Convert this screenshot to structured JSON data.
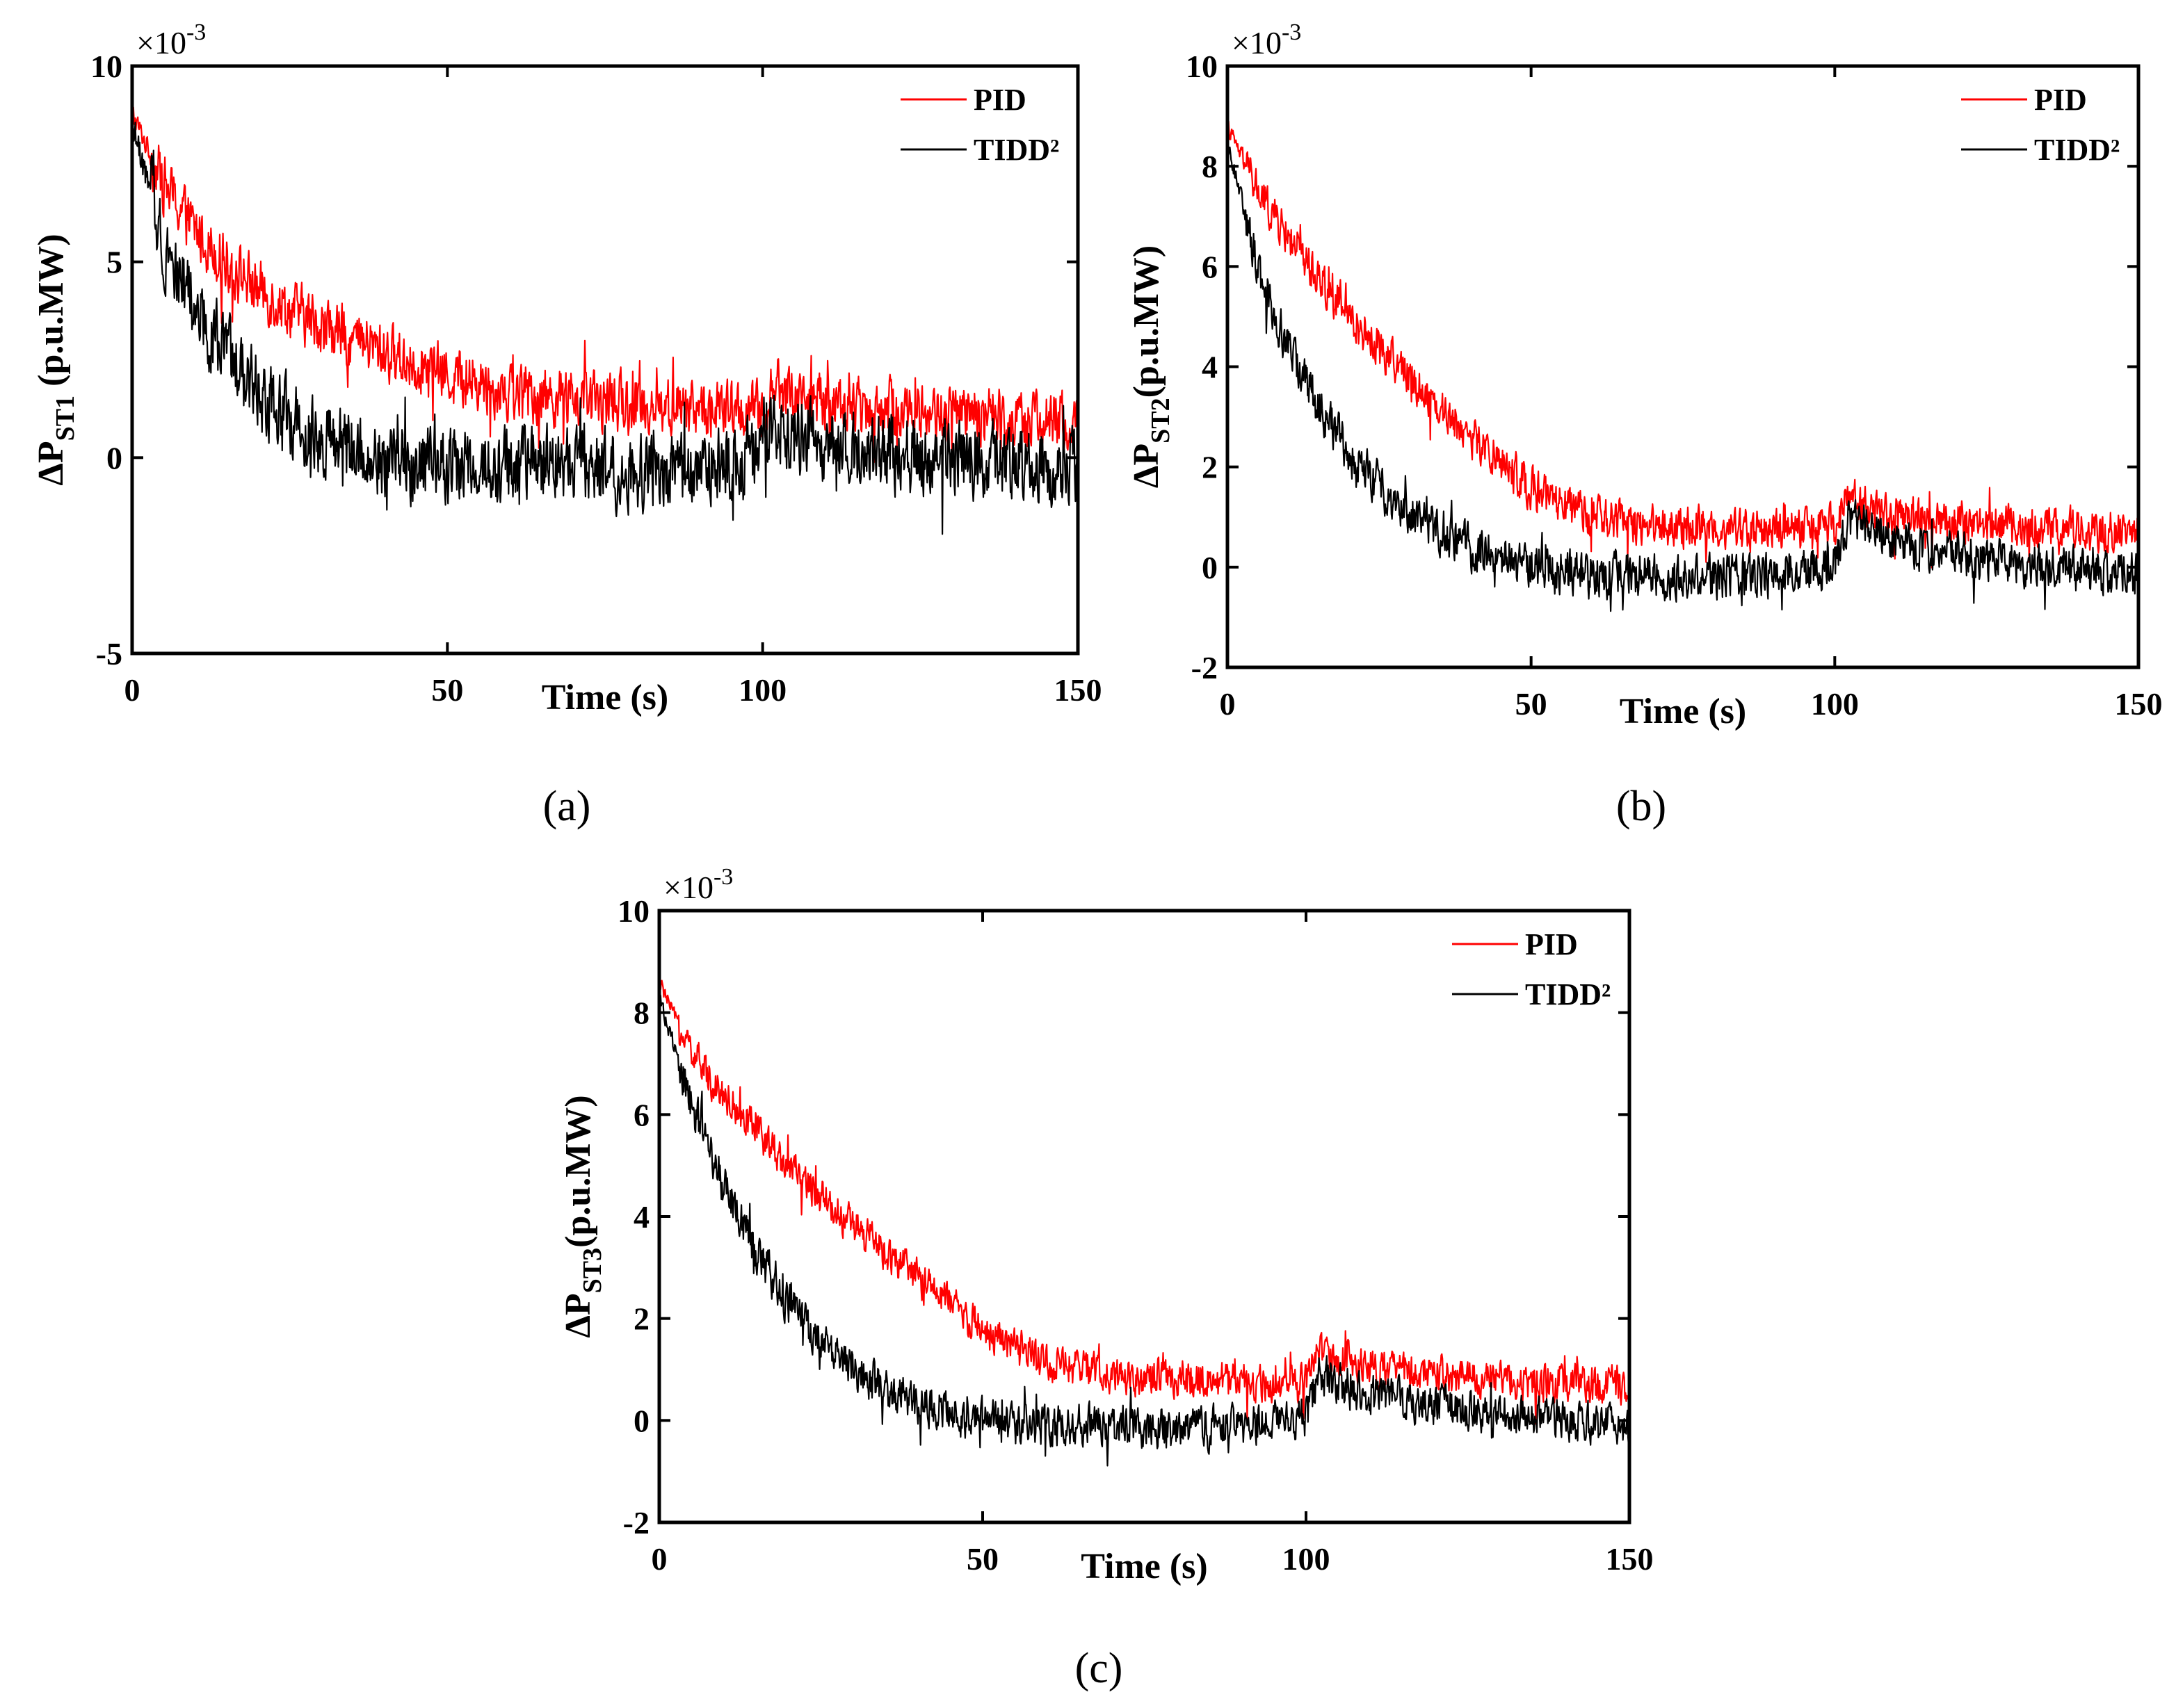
{
  "chart_data": [
    {
      "type": "line",
      "id": "a",
      "caption": "(a)",
      "xlabel": "Time (s)",
      "ylabel": {
        "prefix": "ΔP",
        "subscript": "ST1",
        "suffix": " (p.u.MW)"
      },
      "exponent_label": "×10",
      "exponent_power": "-3",
      "xlim": [
        0,
        150
      ],
      "ylim": [
        -5,
        10
      ],
      "xticks": [
        0,
        50,
        100,
        150
      ],
      "yticks": [
        -5,
        0,
        5,
        10
      ],
      "series": [
        {
          "name": "PID",
          "color": "#ff0000",
          "noise": 1.0,
          "x": [
            0,
            5,
            10,
            15,
            20,
            25,
            30,
            35,
            40,
            45,
            50,
            55,
            60,
            65,
            70,
            75,
            80,
            85,
            90,
            95,
            100,
            102,
            105,
            110,
            115,
            120,
            125,
            130,
            135,
            140,
            145,
            150
          ],
          "values": [
            8.8,
            7.0,
            5.8,
            5.0,
            4.3,
            3.8,
            3.4,
            3.0,
            2.7,
            2.4,
            2.1,
            1.9,
            1.7,
            1.6,
            1.5,
            1.4,
            1.35,
            1.3,
            1.25,
            1.2,
            1.2,
            1.8,
            1.6,
            1.4,
            1.3,
            1.25,
            1.2,
            1.1,
            1.05,
            1.0,
            0.95,
            0.9
          ]
        },
        {
          "name": "TIDD²",
          "color": "#000000",
          "noise": 1.3,
          "x": [
            0,
            5,
            10,
            15,
            20,
            25,
            30,
            35,
            40,
            45,
            50,
            55,
            60,
            65,
            70,
            75,
            80,
            85,
            90,
            95,
            100,
            102,
            105,
            110,
            115,
            120,
            125,
            130,
            135,
            140,
            145,
            150
          ],
          "values": [
            8.5,
            5.5,
            3.8,
            2.6,
            1.7,
            1.0,
            0.5,
            0.2,
            0.0,
            -0.2,
            -0.2,
            -0.25,
            -0.2,
            -0.15,
            -0.2,
            -0.3,
            -0.35,
            -0.4,
            -0.3,
            -0.1,
            0.0,
            0.7,
            0.5,
            0.35,
            0.2,
            0.1,
            0.0,
            -0.05,
            -0.1,
            -0.2,
            -0.2,
            -0.2
          ]
        }
      ]
    },
    {
      "type": "line",
      "id": "b",
      "caption": "(b)",
      "xlabel": "Time (s)",
      "ylabel": {
        "prefix": "ΔP",
        "subscript": "ST2",
        "suffix": "(p.u.MW)"
      },
      "exponent_label": "×10",
      "exponent_power": "-3",
      "xlim": [
        0,
        150
      ],
      "ylim": [
        -2,
        10
      ],
      "xticks": [
        0,
        50,
        100,
        150
      ],
      "yticks": [
        -2,
        0,
        2,
        4,
        6,
        8,
        10
      ],
      "series": [
        {
          "name": "PID",
          "color": "#ff0000",
          "noise": 0.55,
          "x": [
            0,
            5,
            10,
            15,
            20,
            25,
            30,
            35,
            40,
            45,
            50,
            55,
            60,
            65,
            70,
            75,
            80,
            85,
            90,
            95,
            100,
            102,
            105,
            110,
            115,
            120,
            125,
            130,
            135,
            140,
            145,
            150
          ],
          "values": [
            8.8,
            7.5,
            6.6,
            5.8,
            5.0,
            4.4,
            3.8,
            3.2,
            2.6,
            2.1,
            1.6,
            1.2,
            1.0,
            0.9,
            0.85,
            0.8,
            0.8,
            0.75,
            0.75,
            0.75,
            0.8,
            1.4,
            1.2,
            1.05,
            0.95,
            0.9,
            0.85,
            0.8,
            0.8,
            0.75,
            0.75,
            0.7
          ]
        },
        {
          "name": "TIDD²",
          "color": "#000000",
          "noise": 0.6,
          "x": [
            0,
            5,
            10,
            15,
            20,
            25,
            30,
            35,
            40,
            45,
            50,
            55,
            60,
            65,
            70,
            75,
            80,
            85,
            90,
            95,
            100,
            102,
            105,
            110,
            115,
            120,
            125,
            130,
            135,
            140,
            145,
            150
          ],
          "values": [
            8.5,
            6.0,
            4.4,
            3.2,
            2.3,
            1.6,
            1.1,
            0.7,
            0.4,
            0.2,
            0.0,
            -0.1,
            -0.15,
            -0.1,
            -0.15,
            -0.2,
            -0.2,
            -0.2,
            -0.15,
            -0.05,
            0.0,
            0.9,
            0.7,
            0.5,
            0.35,
            0.25,
            0.15,
            0.05,
            0.0,
            -0.05,
            -0.1,
            -0.1
          ]
        }
      ]
    },
    {
      "type": "line",
      "id": "c",
      "caption": "(c)",
      "xlabel": "Time (s)",
      "ylabel": {
        "prefix": "ΔP",
        "subscript": "ST3",
        "suffix": "(p.u.MW)"
      },
      "exponent_label": "×10",
      "exponent_power": "-3",
      "xlim": [
        0,
        150
      ],
      "ylim": [
        -2,
        10
      ],
      "xticks": [
        0,
        50,
        100,
        150
      ],
      "yticks": [
        -2,
        0,
        2,
        4,
        6,
        8,
        10
      ],
      "series": [
        {
          "name": "PID",
          "color": "#ff0000",
          "noise": 0.5,
          "x": [
            0,
            5,
            10,
            15,
            20,
            25,
            30,
            35,
            40,
            45,
            50,
            55,
            60,
            65,
            70,
            75,
            80,
            85,
            90,
            95,
            100,
            102,
            105,
            110,
            115,
            120,
            125,
            130,
            135,
            140,
            145,
            150
          ],
          "values": [
            8.6,
            7.2,
            6.4,
            5.7,
            5.0,
            4.4,
            3.8,
            3.3,
            2.8,
            2.3,
            1.8,
            1.4,
            1.15,
            1.0,
            0.9,
            0.85,
            0.8,
            0.8,
            0.75,
            0.75,
            0.8,
            1.4,
            1.2,
            1.05,
            0.95,
            0.9,
            0.85,
            0.8,
            0.75,
            0.75,
            0.7,
            0.7
          ]
        },
        {
          "name": "TIDD²",
          "color": "#000000",
          "noise": 0.55,
          "x": [
            0,
            5,
            10,
            15,
            20,
            25,
            30,
            35,
            40,
            45,
            50,
            55,
            60,
            65,
            70,
            75,
            80,
            85,
            90,
            95,
            100,
            102,
            105,
            110,
            115,
            120,
            125,
            130,
            135,
            140,
            145,
            150
          ],
          "values": [
            8.3,
            6.2,
            4.6,
            3.3,
            2.3,
            1.5,
            1.0,
            0.6,
            0.35,
            0.15,
            0.0,
            -0.1,
            -0.15,
            -0.1,
            -0.1,
            -0.15,
            -0.2,
            -0.15,
            -0.1,
            0.0,
            0.1,
            0.9,
            0.7,
            0.5,
            0.4,
            0.3,
            0.2,
            0.1,
            0.05,
            0.0,
            -0.05,
            -0.1
          ]
        }
      ]
    }
  ]
}
